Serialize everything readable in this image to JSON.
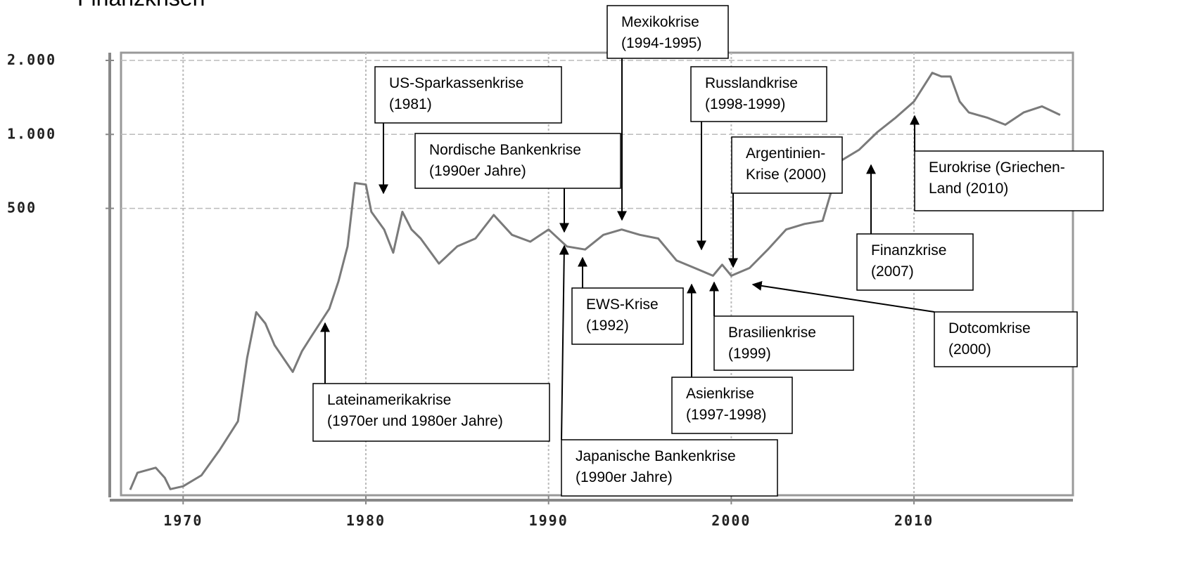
{
  "chart_data": {
    "type": "line",
    "title": "Finanzkrisen",
    "log_scale": true,
    "grid": true,
    "color": "#7a7a7a",
    "xlim": [
      1966.6,
      2018.7
    ],
    "xticks": [
      1970,
      1980,
      1990,
      2000,
      2010
    ],
    "ylim": [
      34,
      2150
    ],
    "yticks": [
      {
        "value": 2000,
        "label": "2.000"
      },
      {
        "value": 1000,
        "label": "1.000"
      },
      500
    ],
    "x": [
      1967.1,
      1967.5,
      1968.5,
      1969,
      1969.3,
      1970,
      1971,
      1972,
      1973,
      1973.5,
      1974,
      1974.5,
      1975,
      1976,
      1976.5,
      1977,
      1978,
      1978.5,
      1979,
      1979.4,
      1980,
      1980.3,
      1981,
      1981.5,
      1982,
      1982.5,
      1983,
      1984,
      1985,
      1986,
      1987,
      1988,
      1989,
      1990,
      1991,
      1992,
      1993,
      1994,
      1995,
      1996,
      1997,
      1998,
      1999,
      1999.5,
      2000,
      2001,
      2002,
      2003,
      2004,
      2005,
      2005.5,
      2006,
      2007,
      2008,
      2009,
      2010,
      2011,
      2011.5,
      2012,
      2012.5,
      2013,
      2014,
      2015,
      2016,
      2017,
      2018
    ],
    "values": [
      35.8,
      42,
      44,
      40,
      36,
      37,
      41,
      52,
      68,
      123,
      189,
      170,
      139,
      108,
      131,
      150,
      195,
      252,
      350,
      634,
      625,
      484,
      410,
      330,
      484,
      410,
      377,
      298,
      350,
      377,
      470,
      390,
      366,
      410,
      350,
      340,
      390,
      410,
      390,
      377,
      307,
      286,
      266,
      295,
      266,
      286,
      340,
      410,
      432,
      445,
      595,
      781,
      866,
      1022,
      1170,
      1361,
      1780,
      1720,
      1720,
      1361,
      1228,
      1170,
      1095,
      1228,
      1300,
      1200
    ],
    "annotations": [
      [
        "US-Sparkassenkrise",
        "(1981)"
      ],
      [
        "Nordische Bankenkrise",
        "(1990er Jahre)"
      ],
      [
        "Mexikokrise",
        "(1994-1995)"
      ],
      [
        "Russlandkrise",
        "(1998-1999)"
      ],
      [
        "Argentinien-",
        "Krise (2000)"
      ],
      [
        "Eurokrise (Griechen-",
        "Land (2010)"
      ],
      [
        "Finanzkrise",
        "(2007)"
      ],
      [
        "Dotcomkrise",
        "(2000)"
      ],
      [
        "Brasilienkrise",
        "(1999)"
      ],
      [
        "Asienkrise",
        "(1997-1998)"
      ],
      [
        "EWS-Krise",
        "(1992)"
      ],
      [
        "Japanische Bankenkrise",
        "(1990er Jahre)"
      ],
      [
        "Lateinamerikakrise",
        "(1970er und 1980er Jahre)"
      ]
    ]
  }
}
